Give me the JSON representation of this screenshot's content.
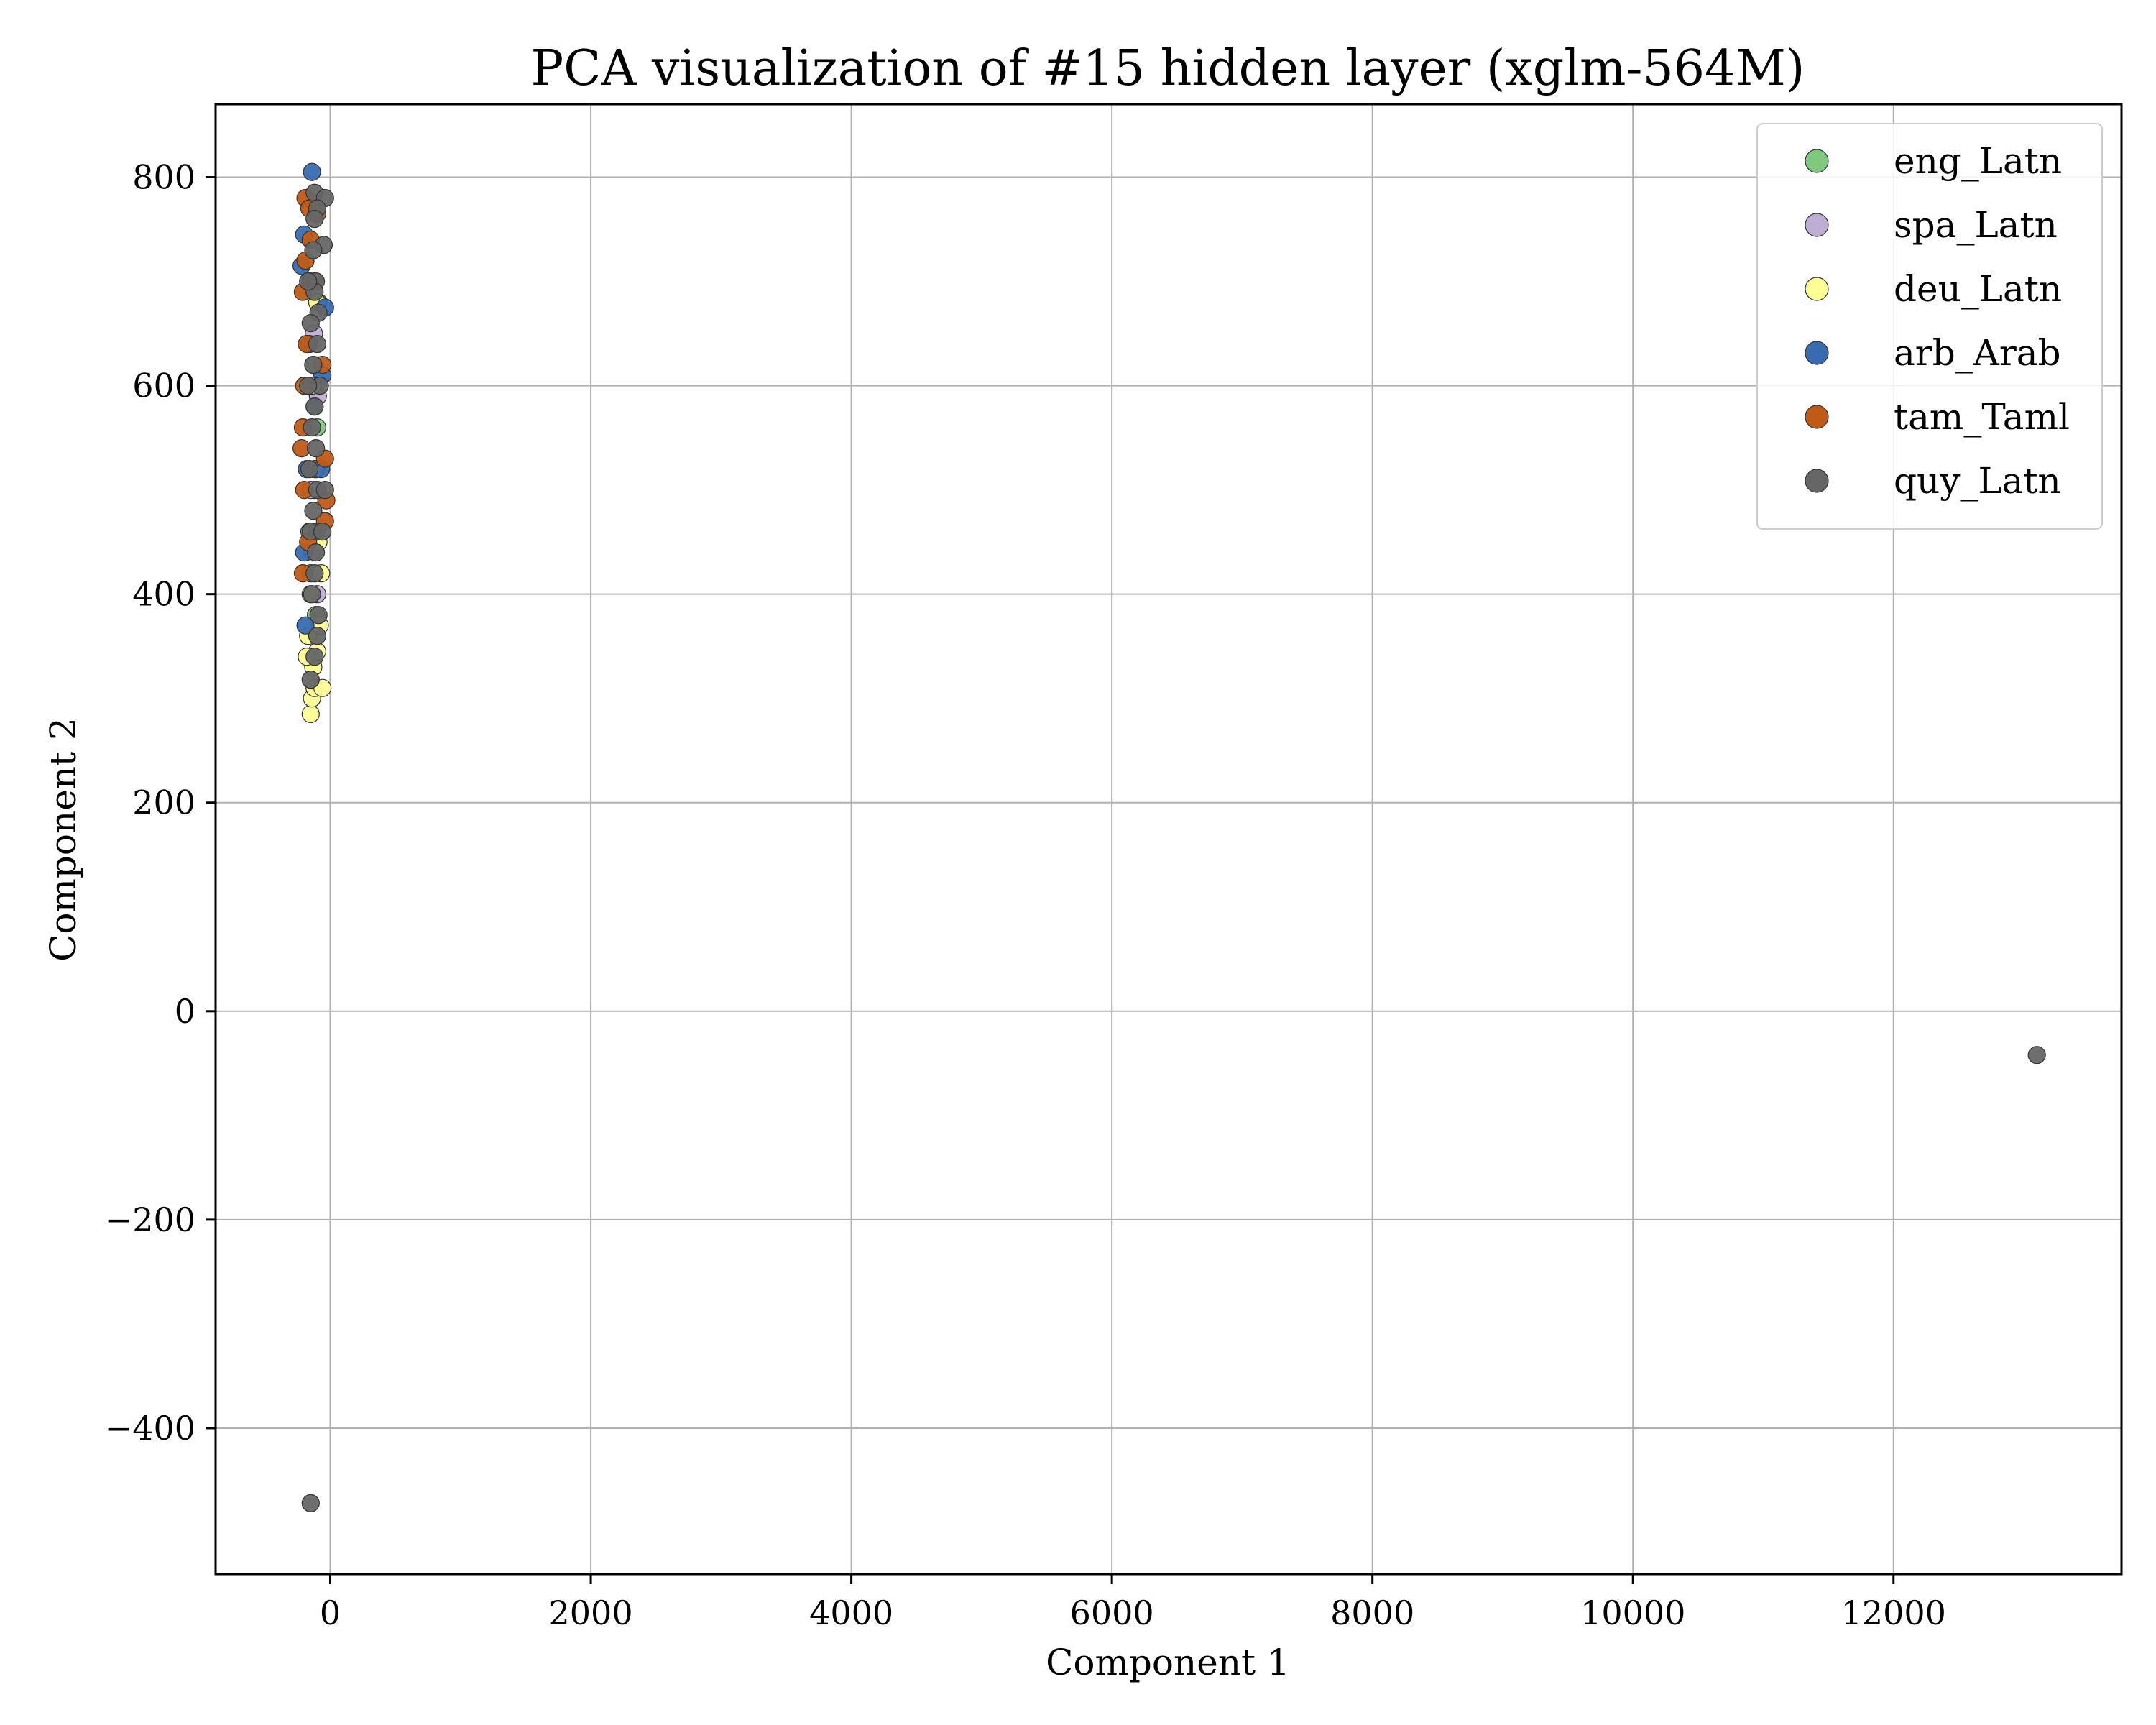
{
  "chart_data": {
    "type": "scatter",
    "title": "PCA visualization of #15 hidden layer (xglm-564M)",
    "xlabel": "Component 1",
    "ylabel": "Component 2",
    "xlim": [
      -880,
      13750
    ],
    "ylim": [
      -540,
      870
    ],
    "xticks": [
      0,
      2000,
      4000,
      6000,
      8000,
      10000,
      12000
    ],
    "xtick_labels": [
      "0",
      "2000",
      "4000",
      "6000",
      "8000",
      "10000",
      "12000"
    ],
    "yticks": [
      -400,
      -200,
      0,
      200,
      400,
      600,
      800
    ],
    "ytick_labels": [
      "−400",
      "−200",
      "0",
      "200",
      "400",
      "600",
      "800"
    ],
    "grid": true,
    "legend_position": "top-right",
    "series": [
      {
        "name": "eng_Latn",
        "color": "#7fc97f",
        "summary": "dense vertical cluster, x≈-230..-10, y≈330..760 (hidden under other series)",
        "points": [
          [
            -150,
            420
          ],
          [
            -120,
            500
          ],
          [
            -100,
            560
          ],
          [
            -130,
            620
          ],
          [
            -90,
            680
          ],
          [
            -160,
            460
          ],
          [
            -110,
            380
          ]
        ]
      },
      {
        "name": "spa_Latn",
        "color": "#beaed4",
        "summary": "dense vertical cluster, x≈-230..-10, y≈330..760 (hidden under other series)",
        "points": [
          [
            -140,
            440
          ],
          [
            -110,
            520
          ],
          [
            -95,
            590
          ],
          [
            -125,
            650
          ],
          [
            -150,
            500
          ],
          [
            -100,
            400
          ]
        ]
      },
      {
        "name": "deu_Latn",
        "color": "#fdfd96",
        "summary": "cluster x≈-230..-10, y≈285..740, lowest points at y≈285-330",
        "points": [
          [
            -150,
            285
          ],
          [
            -140,
            300
          ],
          [
            -120,
            310
          ],
          [
            -60,
            310
          ],
          [
            -130,
            330
          ],
          [
            -100,
            345
          ],
          [
            -170,
            360
          ],
          [
            -80,
            370
          ],
          [
            -150,
            400
          ],
          [
            -90,
            450
          ],
          [
            -120,
            520
          ],
          [
            -140,
            600
          ],
          [
            -100,
            680
          ],
          [
            -70,
            420
          ],
          [
            -180,
            340
          ]
        ]
      },
      {
        "name": "arb_Arab",
        "color": "#386cb0",
        "summary": "cluster x≈-230..-10, y≈365..805",
        "points": [
          [
            -140,
            805
          ],
          [
            -220,
            715
          ],
          [
            -200,
            745
          ],
          [
            -40,
            675
          ],
          [
            -190,
            370
          ],
          [
            -160,
            640
          ],
          [
            -120,
            580
          ],
          [
            -180,
            520
          ],
          [
            -100,
            460
          ],
          [
            -60,
            610
          ],
          [
            -150,
            700
          ],
          [
            -70,
            520
          ],
          [
            -200,
            440
          ]
        ]
      },
      {
        "name": "tam_Taml",
        "color": "#bf5b17",
        "summary": "cluster x≈-230..-10, y≈400..785",
        "points": [
          [
            -190,
            780
          ],
          [
            -160,
            770
          ],
          [
            -100,
            765
          ],
          [
            -190,
            720
          ],
          [
            -210,
            690
          ],
          [
            -180,
            640
          ],
          [
            -200,
            600
          ],
          [
            -220,
            540
          ],
          [
            -40,
            530
          ],
          [
            -200,
            500
          ],
          [
            -30,
            490
          ],
          [
            -40,
            470
          ],
          [
            -170,
            450
          ],
          [
            -210,
            560
          ],
          [
            -150,
            740
          ],
          [
            -120,
            700
          ],
          [
            -60,
            620
          ],
          [
            -210,
            420
          ]
        ]
      },
      {
        "name": "quy_Latn",
        "color": "#666666",
        "summary": "cluster x≈-220..-10, y≈315..785 plus outliers at (13100, -42) and (-150, -472)",
        "points": [
          [
            -120,
            785
          ],
          [
            -40,
            780
          ],
          [
            -100,
            770
          ],
          [
            -120,
            760
          ],
          [
            -50,
            735
          ],
          [
            -130,
            730
          ],
          [
            -110,
            700
          ],
          [
            -120,
            690
          ],
          [
            -90,
            670
          ],
          [
            -150,
            660
          ],
          [
            -100,
            640
          ],
          [
            -130,
            620
          ],
          [
            -80,
            600
          ],
          [
            -120,
            580
          ],
          [
            -140,
            560
          ],
          [
            -110,
            540
          ],
          [
            -160,
            520
          ],
          [
            -100,
            500
          ],
          [
            -130,
            480
          ],
          [
            -150,
            460
          ],
          [
            -110,
            440
          ],
          [
            -120,
            420
          ],
          [
            -140,
            400
          ],
          [
            -90,
            380
          ],
          [
            -100,
            360
          ],
          [
            -120,
            340
          ],
          [
            -150,
            318
          ],
          [
            -60,
            460
          ],
          [
            -40,
            500
          ],
          [
            -170,
            600
          ],
          [
            -170,
            700
          ],
          [
            13100,
            -42
          ],
          [
            -150,
            -472
          ]
        ]
      }
    ]
  }
}
